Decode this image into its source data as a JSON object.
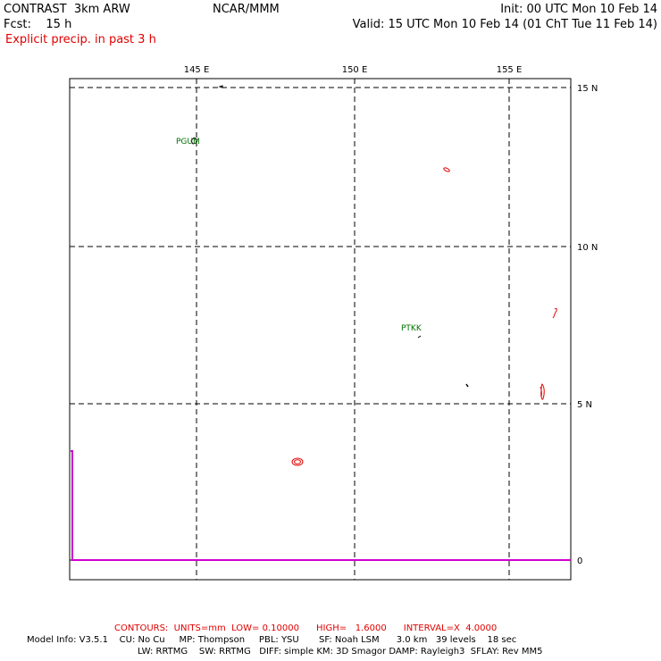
{
  "header": {
    "title": "CONTRAST  3km ARW",
    "forecast": "Fcst:    15 h",
    "center": "NCAR/MMM",
    "init": "Init: 00 UTC Mon 10 Feb 14",
    "valid": "Valid: 15 UTC Mon 10 Feb 14 (01 ChT Tue 11 Feb 14)",
    "field": "Explicit precip. in past 3 h"
  },
  "map": {
    "lon_labels": [
      "145 E",
      "150 E",
      "155 E"
    ],
    "lat_labels": [
      "15 N",
      "10 N",
      "5 N",
      "0"
    ],
    "stations": [
      {
        "id": "PGUM",
        "lon": 144.8,
        "lat": 13.5
      },
      {
        "id": "PTKK",
        "lon": 151.8,
        "lat": 7.45
      }
    ],
    "colors": {
      "grid": "#000000",
      "contour": "#e00000",
      "boundary": "#d000d0",
      "station": "#007000"
    }
  },
  "footer": {
    "contours": "CONTOURS:  UNITS=mm  LOW= 0.10000      HIGH=   1.6000      INTERVAL=X  4.0000",
    "model_line1": "Model Info: V3.5.1    CU: No Cu     MP: Thompson     PBL: YSU       SF: Noah LSM      3.0 km   39 levels    18 sec",
    "model_line2": "LW: RRTMG    SW: RRTMG   DIFF: simple KM: 3D Smagor DAMP: Rayleigh3  SFLAY: Rev MM5"
  }
}
